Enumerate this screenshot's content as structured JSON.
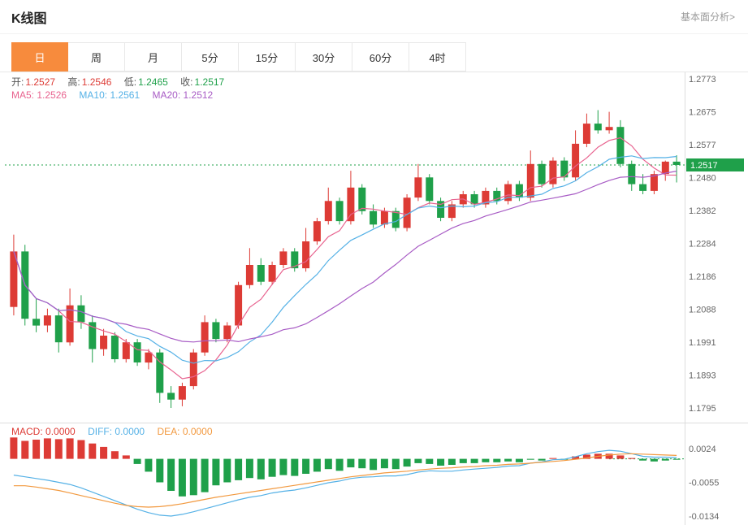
{
  "header": {
    "title": "K线图",
    "analysis_link": "基本面分析>"
  },
  "tabs": {
    "items": [
      {
        "label": "日",
        "active": true
      },
      {
        "label": "周"
      },
      {
        "label": "月"
      },
      {
        "label": "5分"
      },
      {
        "label": "15分"
      },
      {
        "label": "30分"
      },
      {
        "label": "60分"
      },
      {
        "label": "4时"
      }
    ]
  },
  "legend": {
    "ohlc": {
      "open_label": "开:",
      "open": "1.2527",
      "high_label": "高:",
      "high": "1.2546",
      "low_label": "低:",
      "low": "1.2465",
      "close_label": "收:",
      "close": "1.2517"
    },
    "ma": {
      "ma5_label": "MA5:",
      "ma5": "1.2526",
      "ma10_label": "MA10:",
      "ma10": "1.2561",
      "ma20_label": "MA20:",
      "ma20": "1.2512"
    },
    "macd": {
      "macd_label": "MACD:",
      "macd": "0.0000",
      "diff_label": "DIFF:",
      "diff": "0.0000",
      "dea_label": "DEA:",
      "dea": "0.0000"
    }
  },
  "colors": {
    "up": "#dd3b35",
    "down": "#1fa04a",
    "ma5": "#e8638f",
    "ma10": "#55b1e6",
    "ma20": "#a85cc5",
    "diff": "#55b1e6",
    "dea": "#f2993f",
    "macd_legend": "#dd3b35",
    "price_tag": "#1fa04a",
    "tab_active": "#f78b3d"
  },
  "chart_data": {
    "type": "candlestick",
    "title": "K线图",
    "timeframe": "日",
    "price_axis": {
      "ticks": [
        "1.2773",
        "1.2675",
        "1.2577",
        "1.2480",
        "1.2382",
        "1.2284",
        "1.2186",
        "1.2088",
        "1.1991",
        "1.1893",
        "1.1795"
      ],
      "range": [
        1.1795,
        1.2773
      ]
    },
    "current_price": 1.2517,
    "ohlc_display": {
      "open": 1.2527,
      "high": 1.2546,
      "low": 1.2465,
      "close": 1.2517
    },
    "ma": {
      "periods": [
        5,
        10,
        20
      ],
      "ma5": 1.2526,
      "ma10": 1.2561,
      "ma20": 1.2512
    },
    "candles": [
      [
        1.2095,
        1.231,
        1.207,
        1.226
      ],
      [
        1.226,
        1.228,
        1.204,
        1.206
      ],
      [
        1.206,
        1.212,
        1.202,
        1.204
      ],
      [
        1.204,
        1.209,
        1.202,
        1.207
      ],
      [
        1.207,
        1.209,
        1.196,
        1.199
      ],
      [
        1.199,
        1.215,
        1.198,
        1.21
      ],
      [
        1.21,
        1.213,
        1.203,
        1.205
      ],
      [
        1.205,
        1.207,
        1.193,
        1.197
      ],
      [
        1.197,
        1.203,
        1.195,
        1.201
      ],
      [
        1.201,
        1.202,
        1.193,
        1.194
      ],
      [
        1.194,
        1.2,
        1.193,
        1.199
      ],
      [
        1.199,
        1.2,
        1.192,
        1.193
      ],
      [
        1.193,
        1.197,
        1.191,
        1.196
      ],
      [
        1.196,
        1.197,
        1.181,
        1.184
      ],
      [
        1.184,
        1.186,
        1.1795,
        1.182
      ],
      [
        1.182,
        1.187,
        1.18,
        1.186
      ],
      [
        1.186,
        1.197,
        1.185,
        1.196
      ],
      [
        1.196,
        1.207,
        1.195,
        1.205
      ],
      [
        1.205,
        1.206,
        1.199,
        1.2
      ],
      [
        1.2,
        1.205,
        1.199,
        1.204
      ],
      [
        1.204,
        1.217,
        1.203,
        1.216
      ],
      [
        1.216,
        1.227,
        1.215,
        1.222
      ],
      [
        1.222,
        1.224,
        1.216,
        1.217
      ],
      [
        1.217,
        1.223,
        1.216,
        1.222
      ],
      [
        1.222,
        1.227,
        1.221,
        1.226
      ],
      [
        1.226,
        1.227,
        1.22,
        1.221
      ],
      [
        1.221,
        1.233,
        1.22,
        1.229
      ],
      [
        1.229,
        1.236,
        1.228,
        1.235
      ],
      [
        1.235,
        1.245,
        1.234,
        1.241
      ],
      [
        1.241,
        1.242,
        1.234,
        1.235
      ],
      [
        1.235,
        1.25,
        1.234,
        1.245
      ],
      [
        1.245,
        1.246,
        1.237,
        1.238
      ],
      [
        1.238,
        1.24,
        1.233,
        1.234
      ],
      [
        1.234,
        1.239,
        1.233,
        1.238
      ],
      [
        1.238,
        1.239,
        1.232,
        1.233
      ],
      [
        1.233,
        1.243,
        1.232,
        1.242
      ],
      [
        1.242,
        1.252,
        1.241,
        1.248
      ],
      [
        1.248,
        1.249,
        1.24,
        1.241
      ],
      [
        1.241,
        1.242,
        1.235,
        1.236
      ],
      [
        1.236,
        1.241,
        1.235,
        1.24
      ],
      [
        1.24,
        1.244,
        1.239,
        1.243
      ],
      [
        1.243,
        1.244,
        1.239,
        1.24
      ],
      [
        1.24,
        1.245,
        1.239,
        1.244
      ],
      [
        1.244,
        1.245,
        1.24,
        1.241
      ],
      [
        1.241,
        1.247,
        1.24,
        1.246
      ],
      [
        1.246,
        1.247,
        1.241,
        1.242
      ],
      [
        1.242,
        1.256,
        1.241,
        1.252
      ],
      [
        1.252,
        1.253,
        1.245,
        1.246
      ],
      [
        1.246,
        1.254,
        1.245,
        1.253
      ],
      [
        1.253,
        1.254,
        1.247,
        1.248
      ],
      [
        1.248,
        1.262,
        1.247,
        1.258
      ],
      [
        1.258,
        1.267,
        1.257,
        1.264
      ],
      [
        1.264,
        1.268,
        1.261,
        1.262
      ],
      [
        1.262,
        1.2675,
        1.261,
        1.263
      ],
      [
        1.263,
        1.265,
        1.251,
        1.252
      ],
      [
        1.252,
        1.253,
        1.244,
        1.246
      ],
      [
        1.246,
        1.249,
        1.243,
        1.244
      ],
      [
        1.244,
        1.25,
        1.243,
        1.249
      ],
      [
        1.249,
        1.253,
        1.247,
        1.2527
      ],
      [
        1.2527,
        1.2546,
        1.2465,
        1.2517
      ]
    ],
    "macd": {
      "axis_ticks": [
        "0.0024",
        "-0.0055",
        "-0.0134"
      ],
      "macd_value": 0.0,
      "diff_value": 0.0,
      "dea_value": 0.0,
      "histogram": [
        0.005,
        0.0042,
        0.0045,
        0.0048,
        0.0046,
        0.0048,
        0.0044,
        0.0036,
        0.0028,
        0.0018,
        0.0008,
        -0.0012,
        -0.003,
        -0.0055,
        -0.0075,
        -0.0088,
        -0.0085,
        -0.0078,
        -0.0062,
        -0.0055,
        -0.005,
        -0.0045,
        -0.0048,
        -0.0042,
        -0.0038,
        -0.004,
        -0.0035,
        -0.003,
        -0.0024,
        -0.0028,
        -0.002,
        -0.0022,
        -0.0026,
        -0.0022,
        -0.0024,
        -0.0018,
        -0.001,
        -0.0012,
        -0.0016,
        -0.0014,
        -0.001,
        -0.001,
        -0.0008,
        -0.0008,
        -0.0006,
        -0.0008,
        -0.0002,
        -0.0004,
        0.0002,
        -0.0002,
        0.0006,
        0.001,
        0.0012,
        0.0012,
        0.0008,
        0.0002,
        -0.0004,
        -0.0006,
        -0.0004,
        -0.0002
      ],
      "diff_line": [
        -0.0038,
        -0.0042,
        -0.0046,
        -0.005,
        -0.0055,
        -0.006,
        -0.0068,
        -0.0078,
        -0.0088,
        -0.0098,
        -0.0108,
        -0.0118,
        -0.0126,
        -0.0132,
        -0.0134,
        -0.013,
        -0.0124,
        -0.0117,
        -0.011,
        -0.0103,
        -0.0096,
        -0.009,
        -0.0086,
        -0.008,
        -0.0076,
        -0.0073,
        -0.0068,
        -0.0062,
        -0.0056,
        -0.0052,
        -0.0046,
        -0.0043,
        -0.0042,
        -0.004,
        -0.004,
        -0.0037,
        -0.0031,
        -0.0028,
        -0.0029,
        -0.0029,
        -0.0026,
        -0.0024,
        -0.0022,
        -0.002,
        -0.0017,
        -0.0016,
        -0.001,
        -0.0007,
        -0.0002,
        -0.0001,
        0.0005,
        0.0012,
        0.0017,
        0.002,
        0.0018,
        0.0012,
        0.0006,
        0.0004,
        0.0004,
        0.0003
      ],
      "dea_line": [
        -0.0063,
        -0.0063,
        -0.0066,
        -0.007,
        -0.0074,
        -0.008,
        -0.0086,
        -0.0092,
        -0.0098,
        -0.0104,
        -0.0109,
        -0.0112,
        -0.0113,
        -0.0112,
        -0.0109,
        -0.0105,
        -0.01,
        -0.0095,
        -0.009,
        -0.0086,
        -0.0082,
        -0.0078,
        -0.0074,
        -0.007,
        -0.0066,
        -0.0062,
        -0.0058,
        -0.0054,
        -0.005,
        -0.0046,
        -0.0042,
        -0.0039,
        -0.0036,
        -0.0033,
        -0.0031,
        -0.0029,
        -0.0026,
        -0.0024,
        -0.0022,
        -0.0021,
        -0.0019,
        -0.0018,
        -0.0016,
        -0.0015,
        -0.0013,
        -0.0012,
        -0.001,
        -0.0008,
        -0.0006,
        -0.0004,
        -0.0001,
        0.0002,
        0.0006,
        0.0009,
        0.0011,
        0.0012,
        0.0011,
        0.001,
        0.0009,
        0.0008
      ]
    }
  }
}
